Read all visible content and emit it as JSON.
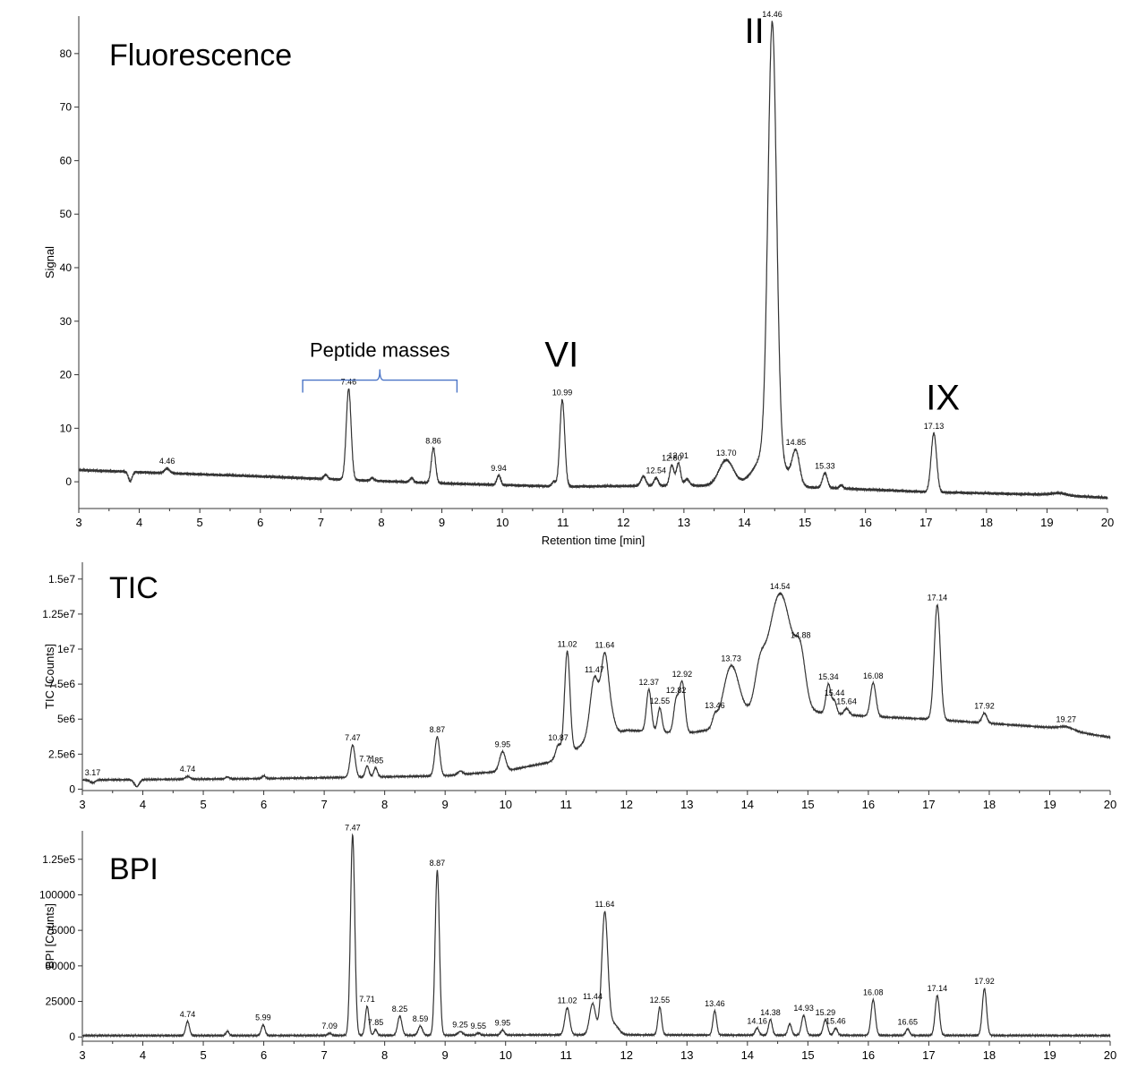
{
  "colors": {
    "trace": "#333333",
    "axis": "#333333",
    "bracket": "#4a74c6",
    "text": "#000000"
  },
  "chart_data": [
    {
      "type": "line",
      "title": "Fluorescence",
      "xlabel": "Retention time [min]",
      "ylabel": "Signal",
      "xlim": [
        3,
        20
      ],
      "ylim": [
        -5,
        87
      ],
      "xticks": [
        "3",
        "4",
        "5",
        "6",
        "7",
        "8",
        "9",
        "10",
        "11",
        "12",
        "13",
        "14",
        "15",
        "16",
        "17",
        "18",
        "19",
        "20"
      ],
      "yticks": [
        {
          "v": 0,
          "label": "0"
        },
        {
          "v": 10,
          "label": "10"
        },
        {
          "v": 20,
          "label": "20"
        },
        {
          "v": 30,
          "label": "30"
        },
        {
          "v": 40,
          "label": "40"
        },
        {
          "v": 50,
          "label": "50"
        },
        {
          "v": 60,
          "label": "60"
        },
        {
          "v": 70,
          "label": "70"
        },
        {
          "v": 80,
          "label": "80"
        }
      ],
      "baseline": [
        [
          3,
          2.2
        ],
        [
          6,
          1.0
        ],
        [
          9,
          -0.3
        ],
        [
          11,
          -0.9
        ],
        [
          13,
          -0.7
        ],
        [
          14,
          -0.8
        ],
        [
          15.5,
          -1.2
        ],
        [
          17,
          -1.9
        ],
        [
          19,
          -2.4
        ],
        [
          20,
          -3.0
        ]
      ],
      "peaks": [
        {
          "x": 3.85,
          "h": -1.8,
          "w": 0.03
        },
        {
          "x": 4.46,
          "h": 0.9,
          "w": 0.04,
          "label": "4.46"
        },
        {
          "x": 7.08,
          "h": 0.8,
          "w": 0.03
        },
        {
          "x": 7.46,
          "h": 17.0,
          "w": 0.04,
          "label": "7.46"
        },
        {
          "x": 7.85,
          "h": 0.5,
          "w": 0.03
        },
        {
          "x": 8.5,
          "h": 0.8,
          "w": 0.03
        },
        {
          "x": 8.86,
          "h": 6.5,
          "w": 0.035,
          "label": "8.86"
        },
        {
          "x": 9.94,
          "h": 1.8,
          "w": 0.03,
          "label": "9.94"
        },
        {
          "x": 10.85,
          "h": 0.9,
          "w": 0.03
        },
        {
          "x": 10.99,
          "h": 16.2,
          "w": 0.04,
          "label": "10.99"
        },
        {
          "x": 12.33,
          "h": 1.8,
          "w": 0.04
        },
        {
          "x": 12.54,
          "h": 1.5,
          "w": 0.035,
          "label": "12.54"
        },
        {
          "x": 12.8,
          "h": 3.8,
          "w": 0.035,
          "label": "12.80"
        },
        {
          "x": 12.91,
          "h": 4.2,
          "w": 0.035,
          "label": "12.91"
        },
        {
          "x": 13.05,
          "h": 1.2,
          "w": 0.04
        },
        {
          "x": 13.7,
          "h": 4.8,
          "w": 0.12,
          "label": "13.70"
        },
        {
          "x": 14.46,
          "h": 80.0,
          "w": 0.07,
          "label": "14.46"
        },
        {
          "x": 14.42,
          "h": 7.0,
          "w": 0.22
        },
        {
          "x": 14.85,
          "h": 6.0,
          "w": 0.06,
          "label": "14.85"
        },
        {
          "x": 15.33,
          "h": 2.8,
          "w": 0.04,
          "label": "15.33"
        },
        {
          "x": 15.6,
          "h": 0.6,
          "w": 0.03
        },
        {
          "x": 17.13,
          "h": 11.0,
          "w": 0.045,
          "label": "17.13"
        },
        {
          "x": 19.2,
          "h": 0.4,
          "w": 0.12
        }
      ],
      "annotations": [
        {
          "text": "II",
          "x": 14.0,
          "y": 82
        },
        {
          "text": "VI",
          "x": 10.7,
          "y": 21.5
        },
        {
          "text": "IX",
          "x": 17.0,
          "y": 13.5
        }
      ],
      "bracket": {
        "x1": 6.7,
        "x2": 9.25,
        "y": 19,
        "text": "Peptide masses"
      }
    },
    {
      "type": "line",
      "title": "TIC",
      "xlabel": "",
      "ylabel": "TIC [Counts]",
      "xlim": [
        3,
        20
      ],
      "ylim": [
        -100000,
        16200000
      ],
      "xticks": [
        "3",
        "4",
        "5",
        "6",
        "7",
        "8",
        "9",
        "10",
        "11",
        "12",
        "13",
        "14",
        "15",
        "16",
        "17",
        "18",
        "19",
        "20"
      ],
      "yticks": [
        {
          "v": 0,
          "label": "0"
        },
        {
          "v": 2500000,
          "label": "2.5e6"
        },
        {
          "v": 5000000,
          "label": "5e6"
        },
        {
          "v": 7500000,
          "label": "7.5e6"
        },
        {
          "v": 10000000,
          "label": "1e7"
        },
        {
          "v": 12500000,
          "label": "1.25e7"
        },
        {
          "v": 15000000,
          "label": "1.5e7"
        }
      ],
      "baseline": [
        [
          3,
          650000
        ],
        [
          6,
          750000
        ],
        [
          7.5,
          850000
        ],
        [
          9,
          950000
        ],
        [
          10,
          1300000
        ],
        [
          10.7,
          1900000
        ],
        [
          11.15,
          2800000
        ],
        [
          11.35,
          3500000
        ],
        [
          12,
          4200000
        ],
        [
          13,
          4000000
        ],
        [
          13.5,
          4300000
        ],
        [
          14,
          5200000
        ],
        [
          15,
          5500000
        ],
        [
          16,
          5200000
        ],
        [
          17,
          5000000
        ],
        [
          18,
          4700000
        ],
        [
          19,
          4400000
        ],
        [
          20,
          3700000
        ]
      ],
      "peaks": [
        {
          "x": 3.17,
          "h": -200000,
          "w": 0.04,
          "label": "3.17"
        },
        {
          "x": 3.9,
          "h": -500000,
          "w": 0.04
        },
        {
          "x": 4.74,
          "h": 200000,
          "w": 0.04,
          "label": "4.74"
        },
        {
          "x": 5.4,
          "h": 150000,
          "w": 0.03
        },
        {
          "x": 6.0,
          "h": 200000,
          "w": 0.03
        },
        {
          "x": 7.47,
          "h": 2300000,
          "w": 0.04,
          "label": "7.47"
        },
        {
          "x": 7.71,
          "h": 800000,
          "w": 0.03,
          "label": "7.71"
        },
        {
          "x": 7.85,
          "h": 650000,
          "w": 0.03,
          "label": "7.85"
        },
        {
          "x": 8.87,
          "h": 2800000,
          "w": 0.04,
          "label": "8.87"
        },
        {
          "x": 9.25,
          "h": 250000,
          "w": 0.04
        },
        {
          "x": 9.95,
          "h": 1400000,
          "w": 0.05,
          "label": "9.95"
        },
        {
          "x": 10.87,
          "h": 900000,
          "w": 0.04,
          "label": "10.87"
        },
        {
          "x": 11.02,
          "h": 7300000,
          "w": 0.045,
          "label": "11.02"
        },
        {
          "x": 11.47,
          "h": 4300000,
          "w": 0.07,
          "label": "11.47"
        },
        {
          "x": 11.64,
          "h": 5500000,
          "w": 0.06,
          "label": "11.64"
        },
        {
          "x": 11.75,
          "h": 1200000,
          "w": 0.06
        },
        {
          "x": 12.37,
          "h": 3000000,
          "w": 0.04,
          "label": "12.37"
        },
        {
          "x": 12.55,
          "h": 1700000,
          "w": 0.035,
          "label": "12.55"
        },
        {
          "x": 12.82,
          "h": 2200000,
          "w": 0.04,
          "label": "12.82"
        },
        {
          "x": 12.92,
          "h": 3600000,
          "w": 0.045,
          "label": "12.92"
        },
        {
          "x": 13.46,
          "h": 700000,
          "w": 0.04,
          "label": "13.46"
        },
        {
          "x": 13.73,
          "h": 4100000,
          "w": 0.13,
          "label": "13.73"
        },
        {
          "x": 14.2,
          "h": 2200000,
          "w": 0.08
        },
        {
          "x": 14.54,
          "h": 8600000,
          "w": 0.2,
          "label": "14.54"
        },
        {
          "x": 14.88,
          "h": 3000000,
          "w": 0.08,
          "label": "14.88"
        },
        {
          "x": 15.34,
          "h": 2100000,
          "w": 0.04,
          "label": "15.34"
        },
        {
          "x": 15.44,
          "h": 900000,
          "w": 0.035,
          "label": "15.44"
        },
        {
          "x": 15.64,
          "h": 450000,
          "w": 0.04,
          "label": "15.64"
        },
        {
          "x": 16.08,
          "h": 2400000,
          "w": 0.045,
          "label": "16.08"
        },
        {
          "x": 17.14,
          "h": 8200000,
          "w": 0.05,
          "label": "17.14"
        },
        {
          "x": 17.92,
          "h": 700000,
          "w": 0.04,
          "label": "17.92"
        },
        {
          "x": 19.27,
          "h": 250000,
          "w": 0.12,
          "label": "19.27"
        }
      ]
    },
    {
      "type": "line",
      "title": "BPI",
      "xlabel": "",
      "ylabel": "BPI [Counts]",
      "xlim": [
        3,
        20
      ],
      "ylim": [
        -3000,
        145000
      ],
      "xticks": [
        "3",
        "4",
        "5",
        "6",
        "7",
        "8",
        "9",
        "10",
        "11",
        "12",
        "13",
        "14",
        "15",
        "16",
        "17",
        "18",
        "19",
        "20"
      ],
      "yticks": [
        {
          "v": 0,
          "label": "0"
        },
        {
          "v": 25000,
          "label": "25000"
        },
        {
          "v": 50000,
          "label": "50000"
        },
        {
          "v": 75000,
          "label": "75000"
        },
        {
          "v": 100000,
          "label": "100000"
        },
        {
          "v": 125000,
          "label": "1.25e5"
        }
      ],
      "baseline": [
        [
          3,
          1000
        ],
        [
          6,
          1000
        ],
        [
          9,
          1200
        ],
        [
          11,
          1500
        ],
        [
          12,
          1500
        ],
        [
          15,
          1200
        ],
        [
          20,
          1000
        ]
      ],
      "peaks": [
        {
          "x": 4.74,
          "h": 10000,
          "w": 0.03,
          "label": "4.74"
        },
        {
          "x": 5.4,
          "h": 3000,
          "w": 0.025
        },
        {
          "x": 5.99,
          "h": 7500,
          "w": 0.03,
          "label": "5.99"
        },
        {
          "x": 7.09,
          "h": 1500,
          "w": 0.03,
          "label": "7.09"
        },
        {
          "x": 7.47,
          "h": 141000,
          "w": 0.035,
          "label": "7.47"
        },
        {
          "x": 7.71,
          "h": 20500,
          "w": 0.03,
          "label": "7.71"
        },
        {
          "x": 7.85,
          "h": 4000,
          "w": 0.025,
          "label": "7.85"
        },
        {
          "x": 8.25,
          "h": 13500,
          "w": 0.035,
          "label": "8.25"
        },
        {
          "x": 8.59,
          "h": 6500,
          "w": 0.035,
          "label": "8.59"
        },
        {
          "x": 8.87,
          "h": 116000,
          "w": 0.035,
          "label": "8.87"
        },
        {
          "x": 9.25,
          "h": 2500,
          "w": 0.04,
          "label": "9.25"
        },
        {
          "x": 9.55,
          "h": 1500,
          "w": 0.03,
          "label": "9.55"
        },
        {
          "x": 9.95,
          "h": 3500,
          "w": 0.03,
          "label": "9.95"
        },
        {
          "x": 11.02,
          "h": 19000,
          "w": 0.04,
          "label": "11.02"
        },
        {
          "x": 11.44,
          "h": 22000,
          "w": 0.05,
          "label": "11.44"
        },
        {
          "x": 11.64,
          "h": 85000,
          "w": 0.05,
          "label": "11.64"
        },
        {
          "x": 11.78,
          "h": 8000,
          "w": 0.08
        },
        {
          "x": 12.55,
          "h": 19500,
          "w": 0.03,
          "label": "12.55"
        },
        {
          "x": 13.46,
          "h": 17000,
          "w": 0.03,
          "label": "13.46"
        },
        {
          "x": 14.16,
          "h": 5000,
          "w": 0.03,
          "label": "14.16"
        },
        {
          "x": 14.38,
          "h": 11000,
          "w": 0.03,
          "label": "14.38"
        },
        {
          "x": 14.7,
          "h": 8000,
          "w": 0.03
        },
        {
          "x": 14.93,
          "h": 14000,
          "w": 0.035,
          "label": "14.93"
        },
        {
          "x": 15.29,
          "h": 11000,
          "w": 0.035,
          "label": "15.29"
        },
        {
          "x": 15.46,
          "h": 5000,
          "w": 0.03,
          "label": "15.46"
        },
        {
          "x": 16.08,
          "h": 25000,
          "w": 0.035,
          "label": "16.08"
        },
        {
          "x": 16.65,
          "h": 4500,
          "w": 0.03,
          "label": "16.65"
        },
        {
          "x": 17.14,
          "h": 28000,
          "w": 0.035,
          "label": "17.14"
        },
        {
          "x": 17.92,
          "h": 33000,
          "w": 0.035,
          "label": "17.92"
        }
      ]
    }
  ]
}
